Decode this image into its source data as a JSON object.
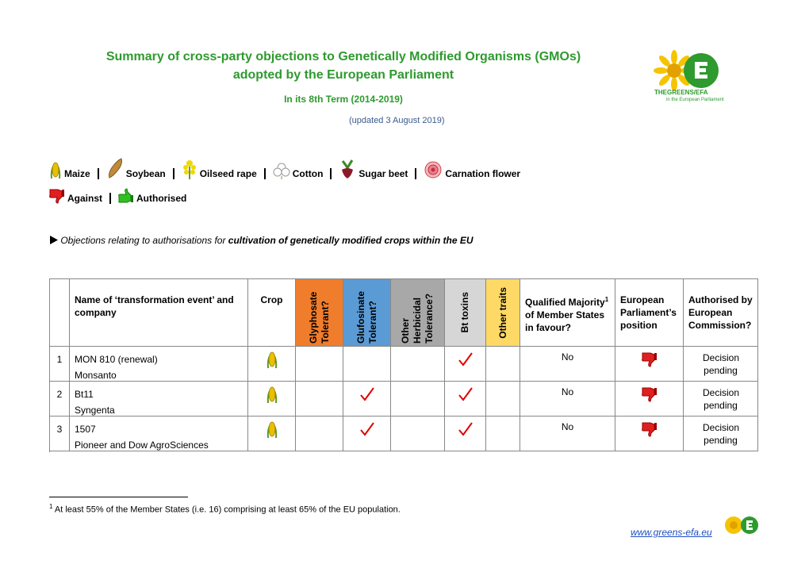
{
  "header": {
    "title_line1": "Summary of cross-party objections to Genetically Modified Organisms (GMOs)",
    "title_line2": "adopted by the European Parliament",
    "term": "In its 8th Term (2014-2019)",
    "updated": "(updated 3 August 2019)",
    "logo_name": "THEGREENS/EFA",
    "logo_sub": "in the European Parliament"
  },
  "legend": {
    "crops": [
      "Maize",
      "Soybean",
      "Oilseed rape",
      "Cotton",
      "Sugar beet",
      "Carnation flower"
    ],
    "positions": [
      "Against",
      "Authorised"
    ]
  },
  "section": {
    "prefix": "Objections relating to authorisations for ",
    "emphasis": "cultivation of genetically modified crops within the EU"
  },
  "table": {
    "headers": [
      "Name of ‘transformation event’ and company",
      "Crop",
      "Glyphosate Tolerant?",
      "Glufosinate Tolerant?",
      "Other Herbicidal Tolerance?",
      "Bt toxins",
      "Other traits",
      "Qualified Majority",
      "of Member States in favour?",
      "European Parliament’s position",
      "Authorised by European Commission?"
    ],
    "footnote_ref": "1",
    "rows": [
      {
        "number": "1",
        "event": "MON 810 (renewal)",
        "company": "Monsanto",
        "checks": [
          false,
          false,
          false,
          true,
          false
        ],
        "majority": "No",
        "authorised": "Decision pending"
      },
      {
        "number": "2",
        "event": "Bt11",
        "company": "Syngenta",
        "checks": [
          false,
          true,
          false,
          true,
          false
        ],
        "majority": "No",
        "authorised": "Decision pending"
      },
      {
        "number": "3",
        "event": "1507",
        "company": "Pioneer and Dow AgroSciences",
        "checks": [
          false,
          true,
          false,
          true,
          false
        ],
        "majority": "No",
        "authorised": "Decision pending"
      }
    ]
  },
  "footnote": {
    "number": "1",
    "text": "At least 55% of the Member States (i.e. 16) comprising at least 65% of the EU population."
  },
  "footer": {
    "link": "www.greens-efa.eu"
  }
}
